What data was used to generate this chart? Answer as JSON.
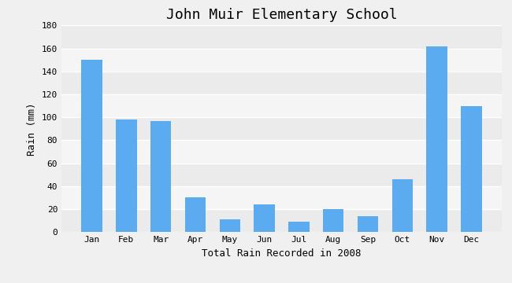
{
  "title": "John Muir Elementary School",
  "xlabel": "Total Rain Recorded in 2008",
  "ylabel": "Rain (mm)",
  "months": [
    "Jan",
    "Feb",
    "Mar",
    "Apr",
    "May",
    "Jun",
    "Jul",
    "Aug",
    "Sep",
    "Oct",
    "Nov",
    "Dec"
  ],
  "values": [
    150,
    98,
    97,
    30,
    11,
    24,
    9,
    20,
    14,
    46,
    162,
    110
  ],
  "bar_color": "#5aabf0",
  "ylim": [
    0,
    180
  ],
  "yticks": [
    0,
    20,
    40,
    60,
    80,
    100,
    120,
    140,
    160,
    180
  ],
  "bg_color": "#f0f0f0",
  "plot_bg_color": "#f0f0f0",
  "grid_color": "#ffffff",
  "band_colors": [
    "#ebebeb",
    "#f5f5f5"
  ],
  "title_fontsize": 13,
  "label_fontsize": 9,
  "tick_fontsize": 8,
  "font_family": "monospace"
}
